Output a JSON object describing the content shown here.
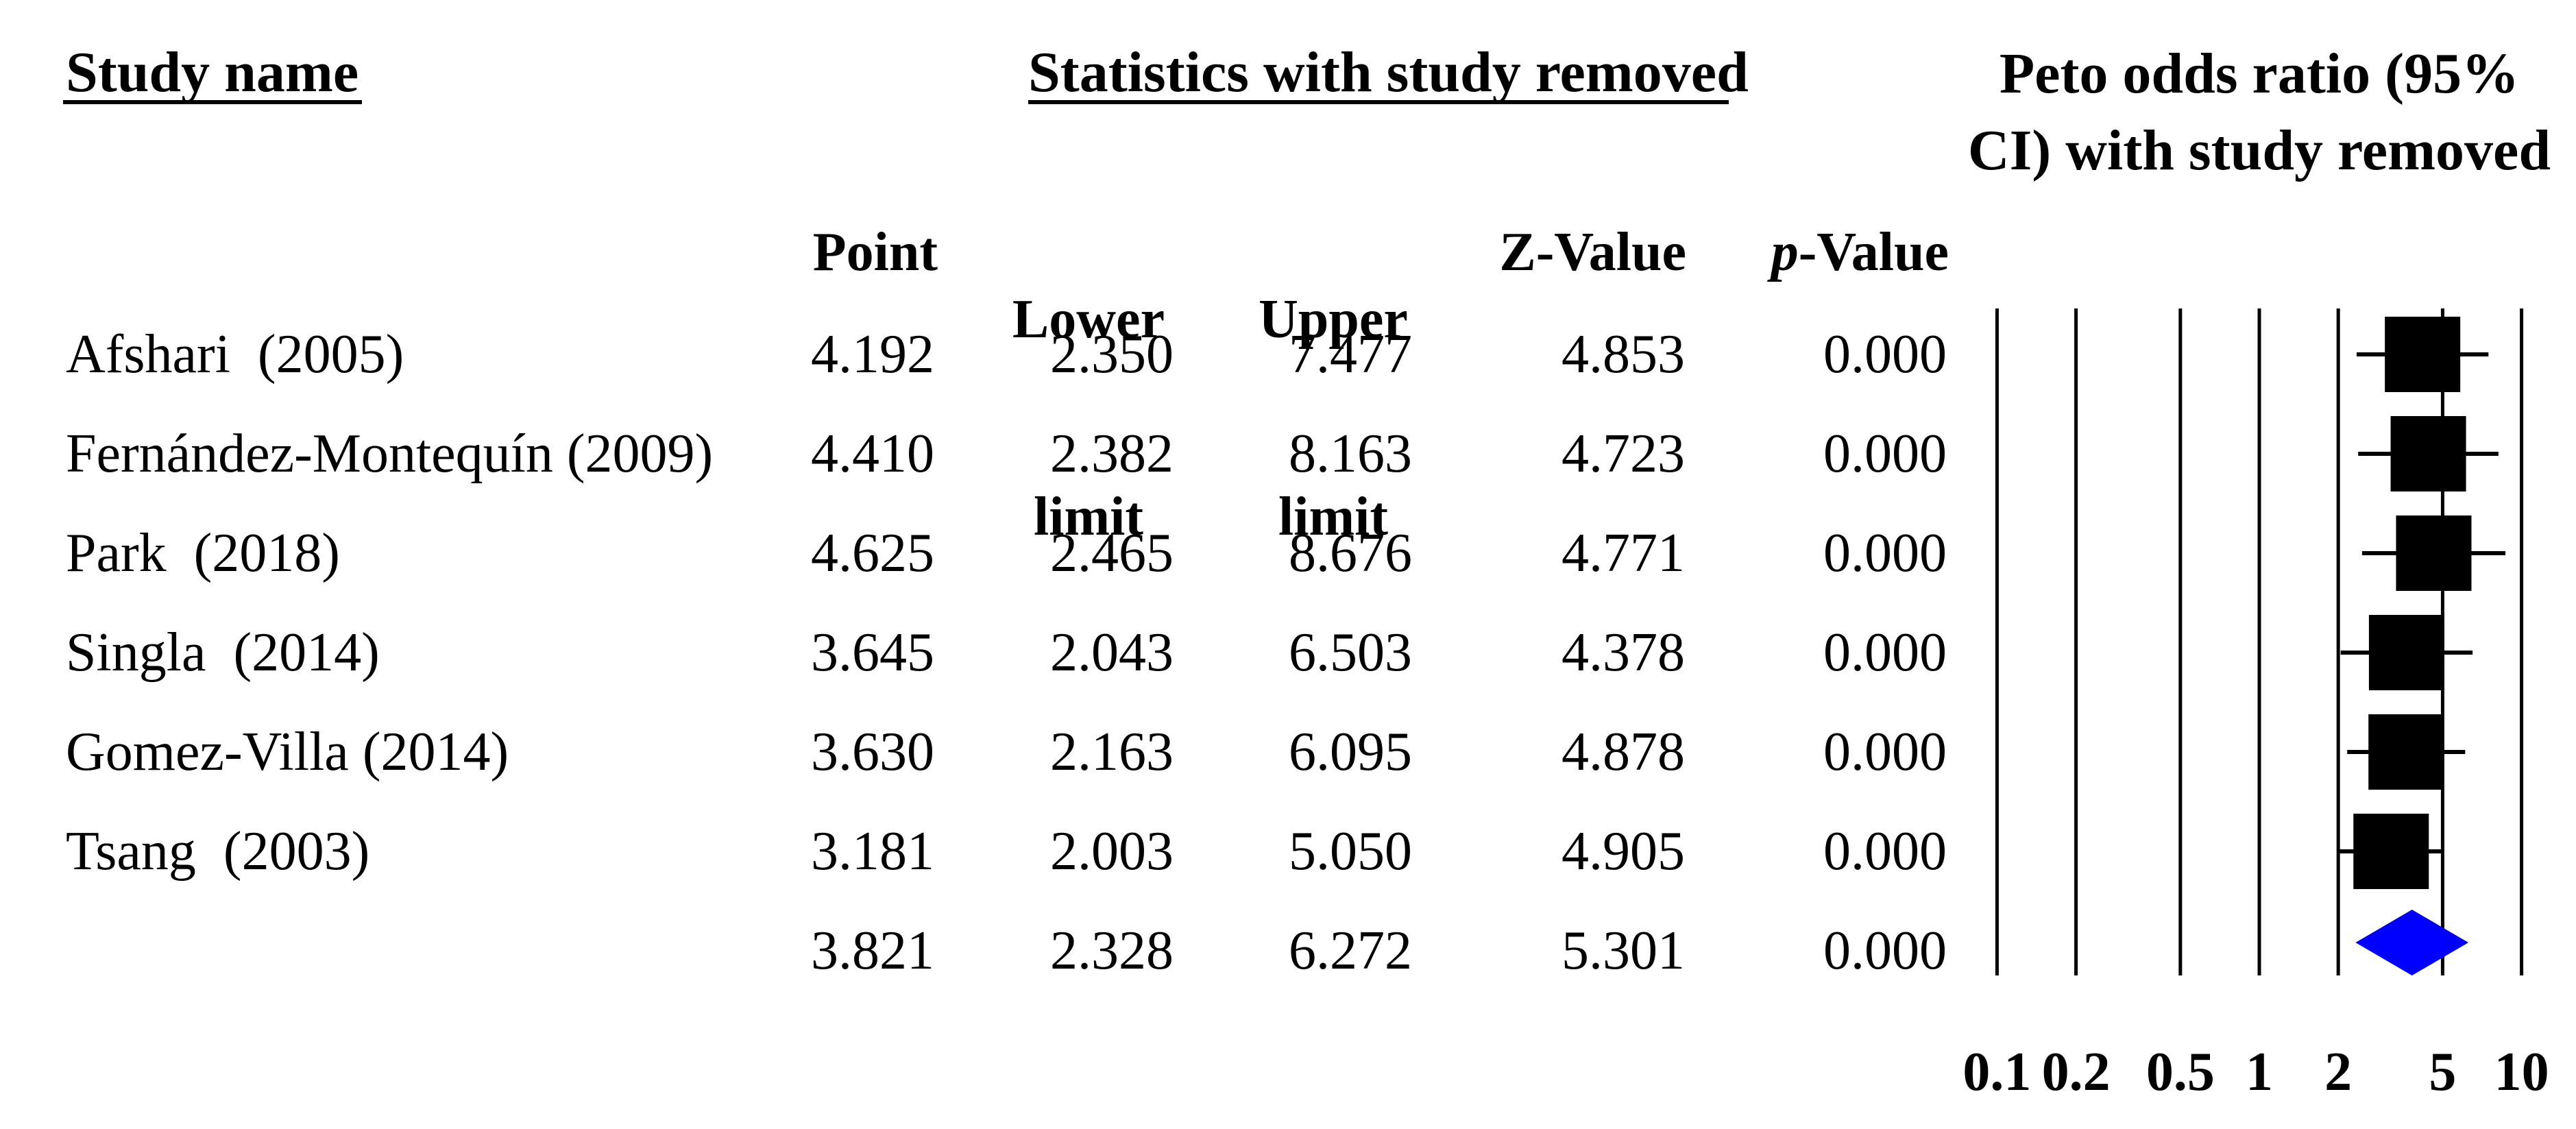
{
  "figure": {
    "headers": {
      "study": "Study name",
      "stats_group": "Statistics with study removed",
      "peto_line1": "Peto odds ratio (95%",
      "peto_line2": "CI) with study removed",
      "point": "Point",
      "lower": [
        "Lower",
        "limit"
      ],
      "upper": [
        "Upper",
        "limit"
      ],
      "z": "Z-Value",
      "p_italic": "p",
      "p_rest": "-Value"
    }
  },
  "chart_data": {
    "type": "forest",
    "title": "Peto odds ratio (95% CI) with study removed",
    "x_scale": "log10",
    "xlim": [
      0.1,
      10
    ],
    "x_ticks": [
      0.1,
      0.2,
      0.5,
      1,
      2,
      5,
      10
    ],
    "x_tick_labels": [
      "0.1",
      "0.2",
      "0.5",
      "1",
      "2",
      "5",
      "10"
    ],
    "columns": [
      "Point",
      "Lower limit",
      "Upper limit",
      "Z-Value",
      "p-Value"
    ],
    "studies": [
      {
        "name": "Afshari  (2005)",
        "point": 4.192,
        "lower": 2.35,
        "upper": 7.477,
        "z": 4.853,
        "p": 0.0
      },
      {
        "name": "Fernández-Montequín (2009)",
        "point": 4.41,
        "lower": 2.382,
        "upper": 8.163,
        "z": 4.723,
        "p": 0.0
      },
      {
        "name": "Park  (2018)",
        "point": 4.625,
        "lower": 2.465,
        "upper": 8.676,
        "z": 4.771,
        "p": 0.0
      },
      {
        "name": "Singla  (2014)",
        "point": 3.645,
        "lower": 2.043,
        "upper": 6.503,
        "z": 4.378,
        "p": 0.0
      },
      {
        "name": "Gomez-Villa (2014)",
        "point": 3.63,
        "lower": 2.163,
        "upper": 6.095,
        "z": 4.878,
        "p": 0.0
      },
      {
        "name": "Tsang  (2003)",
        "point": 3.181,
        "lower": 2.003,
        "upper": 5.05,
        "z": 4.905,
        "p": 0.0
      }
    ],
    "overall": {
      "name": "",
      "point": 3.821,
      "lower": 2.328,
      "upper": 6.272,
      "z": 5.301,
      "p": 0.0
    },
    "marker_color": "#000000",
    "diamond_color": "#0000FF",
    "gridline_color": "#000000",
    "grid": true,
    "legend": false
  }
}
